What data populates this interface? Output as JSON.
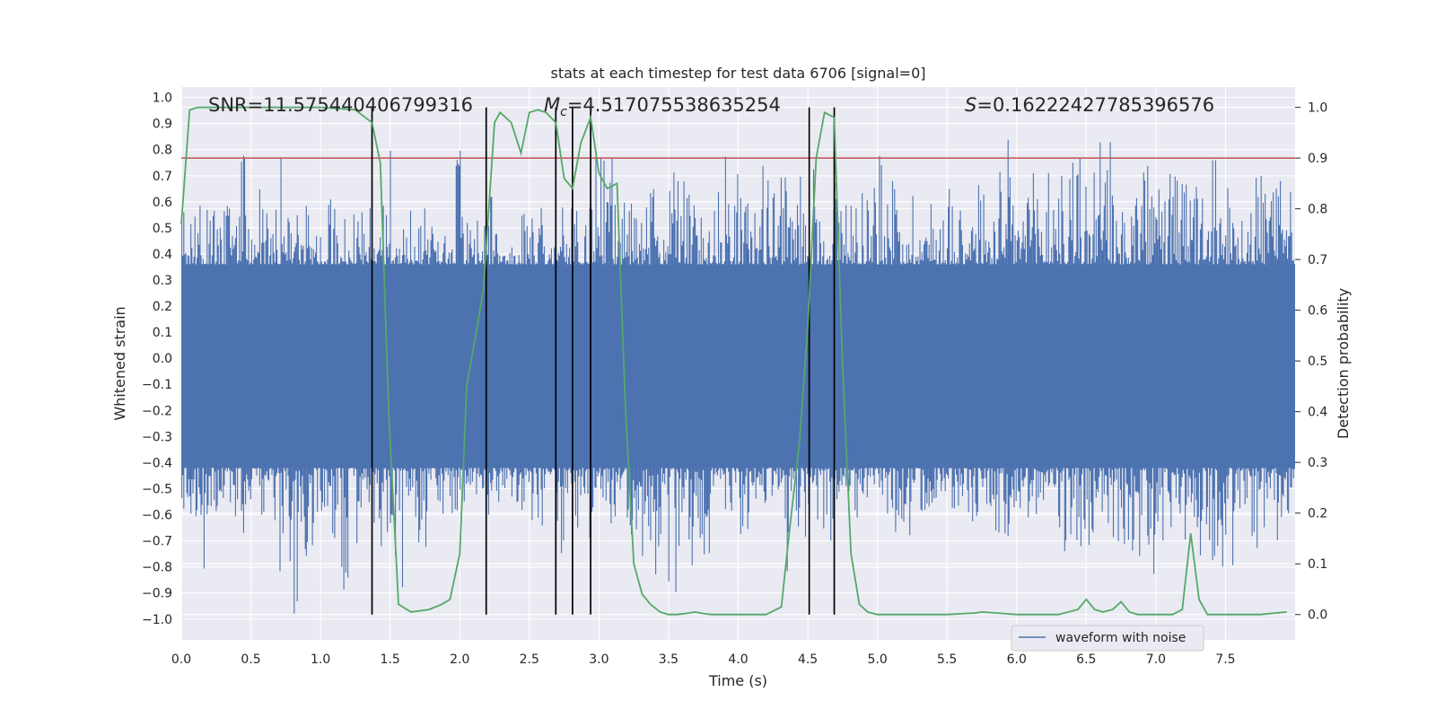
{
  "chart_data": {
    "type": "line",
    "title": "stats at each timestep for test data 6706 [signal=0]",
    "xlabel": "Time (s)",
    "ylabel_left": "Whitened strain",
    "ylabel_right": "Detection probability",
    "xlim": [
      0.0,
      8.0
    ],
    "ylim_left": [
      -1.08,
      1.04
    ],
    "ylim_right": [
      -0.05,
      1.04
    ],
    "x_ticks": [
      "0.0",
      "0.5",
      "1.0",
      "1.5",
      "2.0",
      "2.5",
      "3.0",
      "3.5",
      "4.0",
      "4.5",
      "5.0",
      "5.5",
      "6.0",
      "6.5",
      "7.0",
      "7.5"
    ],
    "y_ticks_left": [
      "1.0",
      "0.9",
      "0.8",
      "0.7",
      "0.6",
      "0.5",
      "0.4",
      "0.3",
      "0.2",
      "0.1",
      "0.0",
      "−0.1",
      "−0.2",
      "−0.3",
      "−0.4",
      "−0.5",
      "−0.6",
      "−0.7",
      "−0.8",
      "−0.9",
      "−1.0"
    ],
    "y_ticks_right": [
      "1.0",
      "0.9",
      "0.8",
      "0.7",
      "0.6",
      "0.5",
      "0.4",
      "0.3",
      "0.2",
      "0.1",
      "0.0"
    ],
    "annotations": {
      "snr": "SNR=11.575440406799316",
      "mc_symbol": "M",
      "mc_sub": "c",
      "mc_value": "=4.517075538635254",
      "s_symbol": "S",
      "s_value": "=0.16222427785396576"
    },
    "legend": {
      "label": "waveform with noise",
      "location": "lower center"
    },
    "threshold": {
      "probability": 0.9,
      "color": "#c44e52"
    },
    "vertical_lines_x": [
      1.37,
      2.19,
      2.69,
      2.81,
      2.94,
      4.51,
      4.69
    ],
    "series": [
      {
        "name": "waveform with noise",
        "color": "#4c72b0",
        "axis": "left",
        "x_range": [
          0.0,
          8.0
        ],
        "band_low": -0.42,
        "band_high": 0.36,
        "peak_max": [
          0.58,
          0.62,
          0.64,
          0.62,
          0.78,
          0.65,
          0.62,
          0.84,
          0.6,
          0.5,
          0.62,
          0.64,
          0.56,
          0.6,
          0.8,
          0.5,
          0.62,
          0.58,
          0.5,
          0.82,
          0.55,
          0.62,
          0.5,
          0.5,
          0.58,
          0.62,
          0.52,
          0.58,
          0.62,
          0.85,
          0.85,
          0.7,
          0.62,
          0.65,
          0.8,
          0.72,
          0.6,
          0.62,
          0.82,
          0.72,
          0.64,
          0.75,
          0.7,
          0.76,
          0.76,
          0.58,
          0.74,
          0.74,
          0.74,
          0.78,
          0.72,
          0.7,
          0.6,
          0.62,
          0.72,
          0.8,
          0.7,
          0.6,
          0.84,
          0.7,
          0.72,
          0.84,
          0.74,
          0.87,
          0.8,
          0.84,
          0.74,
          0.7,
          0.76,
          0.75,
          0.72,
          0.76,
          0.66,
          0.76,
          0.7,
          0.8,
          0.8,
          0.9,
          0.8
        ],
        "trough_min": [
          -0.7,
          -0.81,
          -0.65,
          -0.65,
          -0.74,
          -0.7,
          -0.65,
          -0.82,
          -0.99,
          -0.72,
          -0.78,
          -0.92,
          -0.74,
          -0.65,
          -0.75,
          -0.98,
          -0.62,
          -0.75,
          -0.62,
          -0.62,
          -0.56,
          -0.55,
          -0.6,
          -0.6,
          -0.62,
          -0.65,
          -0.7,
          -0.76,
          -0.68,
          -0.7,
          -0.76,
          -0.62,
          -0.7,
          -0.82,
          -0.86,
          -0.9,
          -0.8,
          -0.85,
          -0.6,
          -0.66,
          -0.72,
          -0.6,
          -0.58,
          -0.82,
          -0.7,
          -0.68,
          -0.7,
          -0.56,
          -0.62,
          -0.62,
          -0.7,
          -0.7,
          -0.68,
          -0.68,
          -0.56,
          -0.62,
          -0.7,
          -0.62,
          -0.68,
          -0.7,
          -0.62,
          -0.7,
          -0.62,
          -0.75,
          -0.83,
          -0.8,
          -0.7,
          -0.72,
          -0.76,
          -0.94,
          -0.7,
          -0.72,
          -0.7,
          -0.8,
          -0.82,
          -0.8,
          -0.7,
          -0.78,
          -0.7,
          -0.62
        ]
      },
      {
        "name": "detection probability",
        "color": "#55a868",
        "axis": "right",
        "x": [
          0.0,
          0.06,
          0.12,
          0.25,
          0.5,
          0.75,
          1.0,
          1.25,
          1.37,
          1.43,
          1.49,
          1.56,
          1.65,
          1.78,
          1.87,
          1.93,
          2.0,
          2.05,
          2.12,
          2.17,
          2.25,
          2.29,
          2.37,
          2.44,
          2.5,
          2.56,
          2.62,
          2.69,
          2.75,
          2.81,
          2.87,
          2.94,
          3.0,
          3.06,
          3.13,
          3.19,
          3.25,
          3.31,
          3.37,
          3.44,
          3.5,
          3.56,
          3.62,
          3.69,
          3.75,
          3.81,
          4.0,
          4.2,
          4.31,
          4.37,
          4.44,
          4.5,
          4.56,
          4.62,
          4.69,
          4.75,
          4.81,
          4.87,
          4.93,
          5.0,
          5.5,
          5.7,
          5.75,
          5.85,
          6.0,
          6.3,
          6.44,
          6.5,
          6.56,
          6.62,
          6.69,
          6.75,
          6.81,
          6.87,
          6.94,
          7.12,
          7.19,
          7.25,
          7.31,
          7.37,
          7.5,
          7.62,
          7.75,
          7.94
        ],
        "y": [
          0.77,
          0.995,
          1.0,
          1.0,
          1.0,
          1.0,
          1.0,
          0.995,
          0.97,
          0.89,
          0.4,
          0.02,
          0.005,
          0.01,
          0.02,
          0.03,
          0.12,
          0.45,
          0.56,
          0.64,
          0.97,
          0.99,
          0.97,
          0.91,
          0.99,
          0.995,
          0.99,
          0.97,
          0.86,
          0.84,
          0.93,
          0.98,
          0.87,
          0.84,
          0.85,
          0.41,
          0.1,
          0.04,
          0.02,
          0.005,
          0.0,
          0.0,
          0.002,
          0.005,
          0.002,
          0.0,
          0.0,
          0.0,
          0.015,
          0.17,
          0.34,
          0.57,
          0.9,
          0.99,
          0.98,
          0.49,
          0.12,
          0.02,
          0.005,
          0.0,
          0.0,
          0.003,
          0.005,
          0.003,
          0.0,
          0.0,
          0.01,
          0.03,
          0.01,
          0.005,
          0.01,
          0.025,
          0.005,
          0.0,
          0.0,
          0.0,
          0.01,
          0.16,
          0.03,
          0.0,
          0.0,
          0.0,
          0.0,
          0.005
        ]
      }
    ]
  }
}
